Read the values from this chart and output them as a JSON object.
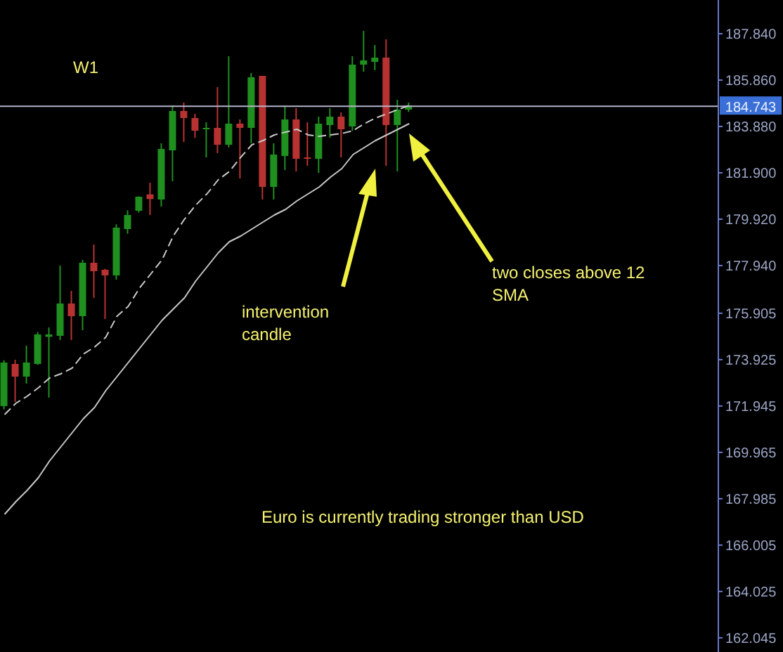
{
  "chart_data": {
    "type": "candlestick",
    "categories": [
      null,
      null,
      null,
      null,
      null,
      null,
      null,
      null,
      null,
      null,
      null,
      null,
      null,
      null,
      null,
      null,
      null,
      null,
      null,
      null,
      null,
      null,
      null,
      null,
      null,
      null,
      null,
      null,
      null,
      null,
      null,
      null,
      null,
      null,
      null,
      null,
      null
    ],
    "ohlc": [
      [
        171.94,
        173.9,
        171.8,
        173.8
      ],
      [
        173.74,
        173.92,
        172.12,
        173.2
      ],
      [
        173.2,
        174.52,
        172.9,
        173.8
      ],
      [
        173.74,
        175.1,
        173.7,
        175.0
      ],
      [
        174.9,
        175.3,
        172.3,
        175.0
      ],
      [
        174.94,
        177.94,
        174.76,
        176.32
      ],
      [
        176.32,
        176.86,
        174.76,
        175.78
      ],
      [
        175.78,
        178.18,
        175.18,
        178.06
      ],
      [
        178.06,
        178.84,
        176.56,
        177.7
      ],
      [
        177.76,
        177.8,
        175.66,
        177.52
      ],
      [
        177.52,
        179.7,
        177.34,
        179.56
      ],
      [
        179.5,
        180.3,
        179.3,
        180.1
      ],
      [
        180.28,
        180.9,
        180.2,
        180.88
      ],
      [
        180.98,
        181.48,
        180.1,
        180.78
      ],
      [
        180.76,
        183.16,
        180.46,
        182.92
      ],
      [
        182.86,
        184.78,
        181.54,
        184.54
      ],
      [
        184.54,
        184.9,
        183.22,
        184.24
      ],
      [
        184.24,
        184.42,
        183.4,
        183.7
      ],
      [
        183.76,
        184.06,
        182.56,
        183.82
      ],
      [
        183.82,
        185.56,
        182.74,
        183.1
      ],
      [
        183.1,
        186.88,
        182.98,
        184.0
      ],
      [
        184.0,
        184.18,
        181.66,
        183.82
      ],
      [
        183.82,
        186.16,
        183.16,
        185.98
      ],
      [
        186.04,
        186.04,
        180.76,
        181.3
      ],
      [
        181.3,
        183.16,
        180.76,
        182.68
      ],
      [
        182.62,
        184.78,
        182.02,
        184.18
      ],
      [
        184.18,
        184.66,
        181.96,
        182.5
      ],
      [
        182.56,
        184.06,
        182.2,
        182.5
      ],
      [
        182.5,
        184.3,
        181.9,
        184.0
      ],
      [
        183.94,
        184.66,
        183.4,
        184.3
      ],
      [
        184.3,
        184.48,
        182.56,
        183.76
      ],
      [
        183.88,
        186.88,
        183.7,
        186.52
      ],
      [
        186.52,
        187.96,
        186.22,
        186.7
      ],
      [
        186.64,
        187.36,
        186.28,
        186.82
      ],
      [
        186.82,
        187.6,
        182.2,
        183.94
      ],
      [
        183.94,
        185.02,
        181.96,
        184.6
      ],
      [
        184.6,
        184.9,
        184.5,
        184.78
      ]
    ],
    "colors": [
      "#1f8f1f",
      "#b83232",
      "#1f8f1f",
      "#1f8f1f",
      "#1f8f1f",
      "#1f8f1f",
      "#b83232",
      "#1f8f1f",
      "#b83232",
      "#b83232",
      "#1f8f1f",
      "#1f8f1f",
      "#1f8f1f",
      "#b83232",
      "#1f8f1f",
      "#1f8f1f",
      "#b83232",
      "#b83232",
      "#1f8f1f",
      "#b83232",
      "#1f8f1f",
      "#b83232",
      "#1f8f1f",
      "#b83232",
      "#1f8f1f",
      "#1f8f1f",
      "#b83232",
      "#b83232",
      "#1f8f1f",
      "#1f8f1f",
      "#b83232",
      "#1f8f1f",
      "#1f8f1f",
      "#1f8f1f",
      "#b83232",
      "#1f8f1f",
      "#1f8f1f"
    ],
    "series": [
      {
        "type": "line",
        "color": "#c8c8c8",
        "line_style": "dashed",
        "values": [
          171.58,
          172.06,
          172.36,
          172.72,
          173.14,
          173.32,
          173.56,
          174.16,
          174.46,
          174.88,
          175.78,
          176.2,
          176.98,
          177.58,
          178.18,
          179.2,
          179.92,
          180.52,
          181.0,
          181.6,
          181.96,
          182.56,
          183.1,
          183.28,
          183.52,
          183.64,
          183.76,
          183.52,
          183.46,
          183.52,
          183.58,
          183.7,
          184.0,
          184.24,
          184.42,
          184.6,
          184.78
        ]
      },
      {
        "type": "line",
        "color": "#c8c8c8",
        "line_style": "solid",
        "values": [
          167.32,
          167.86,
          168.34,
          168.88,
          169.6,
          170.2,
          170.8,
          171.4,
          171.88,
          172.6,
          173.2,
          173.8,
          174.4,
          175.0,
          175.6,
          176.08,
          176.56,
          177.28,
          177.88,
          178.48,
          178.96,
          179.2,
          179.5,
          179.8,
          180.1,
          180.34,
          180.7,
          181.0,
          181.3,
          181.72,
          182.08,
          182.68,
          182.98,
          183.28,
          183.52,
          183.76,
          184.0
        ]
      }
    ],
    "ylim": [
      161.44,
      189.28
    ],
    "yticks": [
      {
        "value": 187.84,
        "label": "187.840"
      },
      {
        "value": 185.86,
        "label": "185.860"
      },
      {
        "value": 183.88,
        "label": "183.880"
      },
      {
        "value": 181.9,
        "label": "181.900"
      },
      {
        "value": 179.92,
        "label": "179.920"
      },
      {
        "value": 177.94,
        "label": "177.940"
      },
      {
        "value": 175.905,
        "label": "175.905"
      },
      {
        "value": 173.925,
        "label": "173.925"
      },
      {
        "value": 171.945,
        "label": "171.945"
      },
      {
        "value": 169.965,
        "label": "169.965"
      },
      {
        "value": 167.985,
        "label": "167.985"
      },
      {
        "value": 166.005,
        "label": "166.005"
      },
      {
        "value": 164.025,
        "label": "164.025"
      },
      {
        "value": 162.045,
        "label": "162.045"
      }
    ],
    "ref_lines": [
      {
        "axis": "y",
        "value": 184.743,
        "label": "184.743",
        "color": "#b4b4c8"
      }
    ],
    "annotations": [
      "W1",
      "intervention candle",
      "two closes above 12 SMA",
      "Euro is currently trading stronger than USD"
    ],
    "tick_labels": "y"
  }
}
